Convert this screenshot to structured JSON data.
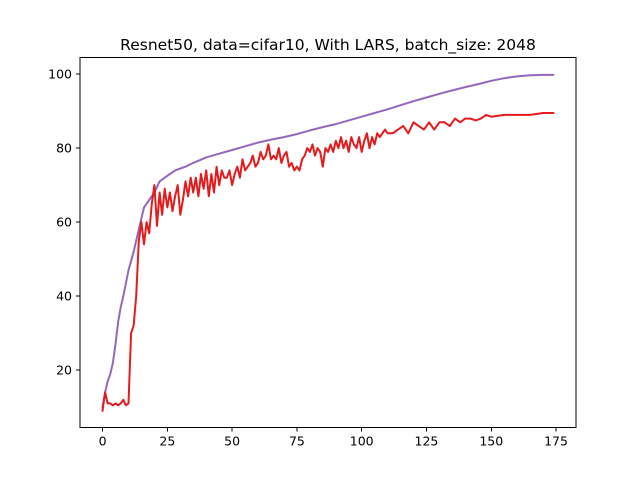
{
  "chart_data": {
    "type": "line",
    "title": "Resnet50, data=cifar10, With LARS, batch_size: 2048",
    "xlabel": "",
    "ylabel": "",
    "xlim": [
      -8.7,
      182.7
    ],
    "ylim": [
      4.5,
      104.5
    ],
    "xticks": [
      0,
      25,
      50,
      75,
      100,
      125,
      150,
      175
    ],
    "yticks": [
      20,
      40,
      60,
      80,
      100
    ],
    "grid": false,
    "legend": "none",
    "series": [
      {
        "color": "#9467bd",
        "x": [
          0,
          1,
          2,
          3,
          4,
          5,
          6,
          7,
          8,
          10,
          12,
          14,
          16,
          18,
          20,
          22,
          24,
          26,
          28,
          30,
          32,
          35,
          40,
          45,
          50,
          55,
          60,
          65,
          70,
          75,
          80,
          85,
          90,
          95,
          100,
          105,
          110,
          115,
          120,
          125,
          130,
          135,
          140,
          145,
          150,
          155,
          160,
          165,
          170,
          174
        ],
        "y": [
          10,
          14,
          17,
          19,
          22,
          27,
          33,
          37,
          40,
          47,
          52,
          58,
          64,
          66,
          68,
          71,
          72,
          73,
          74,
          74.5,
          75,
          76,
          77.5,
          78.5,
          79.5,
          80.5,
          81.5,
          82.3,
          83,
          83.8,
          84.8,
          85.7,
          86.5,
          87.5,
          88.5,
          89.5,
          90.5,
          91.6,
          92.7,
          93.7,
          94.7,
          95.6,
          96.5,
          97.3,
          98.2,
          98.9,
          99.4,
          99.7,
          99.8,
          99.8
        ]
      },
      {
        "color": "#e41a1c",
        "x": [
          0,
          1,
          2,
          3,
          4,
          5,
          6,
          7,
          8,
          9,
          10,
          11,
          12,
          13,
          14,
          15,
          16,
          17,
          18,
          19,
          20,
          21,
          22,
          23,
          24,
          25,
          26,
          27,
          28,
          29,
          30,
          31,
          32,
          33,
          34,
          35,
          36,
          37,
          38,
          39,
          40,
          41,
          42,
          43,
          44,
          45,
          46,
          47,
          48,
          49,
          50,
          51,
          52,
          53,
          54,
          55,
          56,
          57,
          58,
          59,
          60,
          61,
          62,
          63,
          64,
          65,
          66,
          67,
          68,
          69,
          70,
          71,
          72,
          73,
          74,
          75,
          76,
          77,
          78,
          79,
          80,
          81,
          82,
          83,
          84,
          85,
          86,
          87,
          88,
          89,
          90,
          91,
          92,
          93,
          94,
          95,
          96,
          97,
          98,
          99,
          100,
          101,
          102,
          103,
          104,
          105,
          106,
          107,
          108,
          109,
          110,
          112,
          114,
          116,
          118,
          120,
          122,
          124,
          126,
          128,
          130,
          132,
          134,
          136,
          138,
          140,
          142,
          144,
          146,
          148,
          150,
          155,
          160,
          165,
          170,
          174
        ],
        "y": [
          9,
          14,
          11,
          11,
          10.5,
          11,
          10.5,
          11,
          12,
          10.5,
          11,
          30,
          32,
          40,
          55,
          60,
          54,
          60,
          57,
          65,
          70,
          59,
          68,
          62,
          69,
          64,
          68,
          63,
          67,
          70,
          62,
          66,
          71,
          67,
          72,
          68,
          72,
          67,
          73,
          69,
          74,
          67,
          73,
          68,
          75,
          70,
          74,
          72,
          72,
          74,
          70,
          73,
          75,
          72,
          77,
          74,
          75,
          76,
          78,
          75,
          76,
          79,
          77,
          78,
          81,
          77,
          78,
          77,
          80,
          76,
          78,
          79,
          75,
          76,
          74,
          75,
          74,
          77,
          78,
          80,
          79,
          81,
          78,
          80,
          79,
          75,
          80,
          79,
          81,
          79,
          82,
          80,
          83,
          80,
          82,
          79,
          83,
          81,
          80,
          83,
          79,
          82,
          84,
          80,
          83,
          81,
          84,
          83,
          84,
          85,
          84,
          84,
          85,
          86,
          84,
          87,
          86,
          85,
          87,
          85,
          87,
          87,
          86,
          88,
          87,
          88,
          88,
          87.5,
          88,
          89,
          88.5,
          89,
          89,
          89,
          89.5,
          89.5
        ]
      }
    ]
  }
}
